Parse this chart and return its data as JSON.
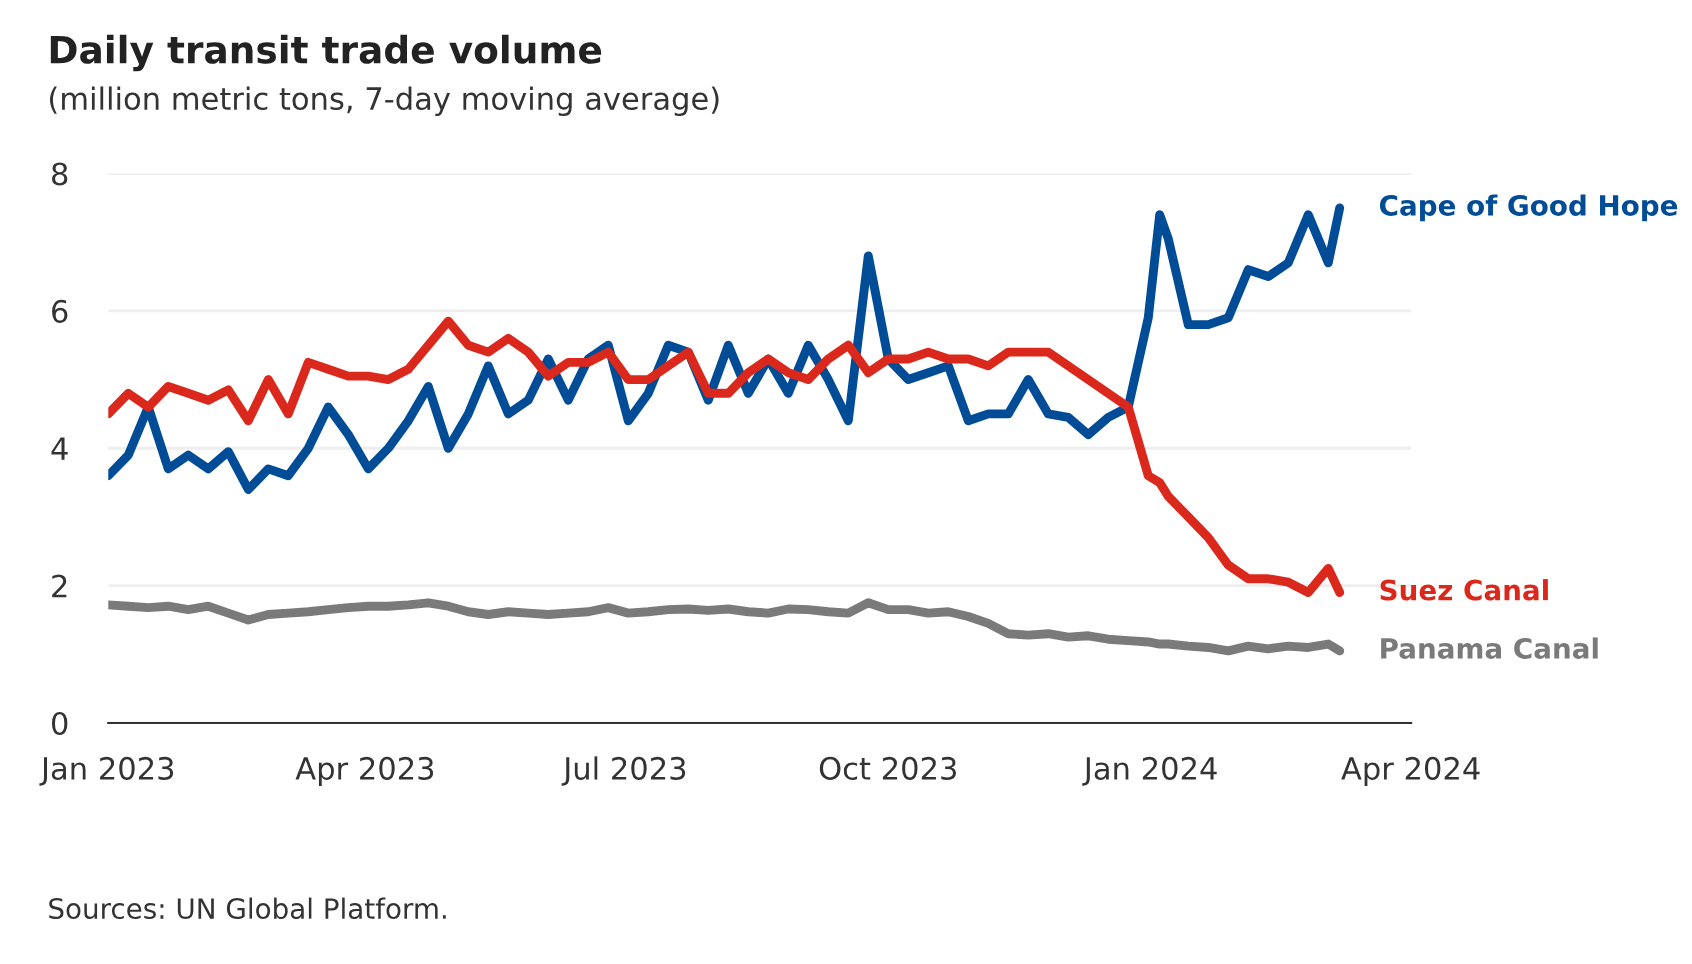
{
  "chart_data": {
    "type": "line",
    "title": "Daily transit trade volume",
    "subtitle": "(million metric tons, 7-day moving average)",
    "x": [
      "2023-01-01",
      "2023-01-08",
      "2023-01-15",
      "2023-01-22",
      "2023-01-29",
      "2023-02-05",
      "2023-02-12",
      "2023-02-19",
      "2023-02-26",
      "2023-03-05",
      "2023-03-12",
      "2023-03-19",
      "2023-03-26",
      "2023-04-02",
      "2023-04-09",
      "2023-04-16",
      "2023-04-23",
      "2023-04-30",
      "2023-05-07",
      "2023-05-14",
      "2023-05-21",
      "2023-05-28",
      "2023-06-04",
      "2023-06-11",
      "2023-06-18",
      "2023-06-25",
      "2023-07-02",
      "2023-07-09",
      "2023-07-16",
      "2023-07-23",
      "2023-07-30",
      "2023-08-06",
      "2023-08-13",
      "2023-08-20",
      "2023-08-27",
      "2023-09-03",
      "2023-09-10",
      "2023-09-17",
      "2023-09-24",
      "2023-10-01",
      "2023-10-08",
      "2023-10-15",
      "2023-10-22",
      "2023-10-29",
      "2023-11-05",
      "2023-11-12",
      "2023-11-19",
      "2023-11-26",
      "2023-12-03",
      "2023-12-10",
      "2023-12-17",
      "2023-12-24",
      "2023-12-31",
      "2024-01-04",
      "2024-01-07",
      "2024-01-14",
      "2024-01-21",
      "2024-01-28",
      "2024-02-04",
      "2024-02-11",
      "2024-02-18",
      "2024-02-25",
      "2024-03-03",
      "2024-03-07"
    ],
    "series": [
      {
        "name": "Cape of Good Hope",
        "color": "#004c97",
        "values": [
          3.6,
          3.9,
          4.6,
          3.7,
          3.9,
          3.7,
          3.95,
          3.4,
          3.7,
          3.6,
          4.0,
          4.6,
          4.2,
          3.7,
          4.0,
          4.4,
          4.9,
          4.0,
          4.5,
          5.2,
          4.5,
          4.7,
          5.3,
          4.7,
          5.3,
          5.5,
          4.4,
          4.8,
          5.5,
          5.4,
          4.7,
          5.5,
          4.8,
          5.3,
          4.8,
          5.5,
          5.0,
          4.4,
          6.8,
          5.3,
          5.0,
          5.1,
          5.2,
          4.4,
          4.5,
          4.5,
          5.0,
          4.5,
          4.45,
          4.2,
          4.45,
          4.6,
          5.9,
          7.4,
          7.05,
          5.8,
          5.8,
          5.9,
          6.6,
          6.5,
          6.7,
          7.4,
          6.7,
          7.5
        ]
      },
      {
        "name": "Suez Canal",
        "color": "#da291c",
        "values": [
          4.5,
          4.8,
          4.6,
          4.9,
          4.8,
          4.7,
          4.85,
          4.4,
          5.0,
          4.5,
          5.25,
          5.15,
          5.05,
          5.05,
          5.0,
          5.15,
          5.5,
          5.85,
          5.5,
          5.4,
          5.6,
          5.4,
          5.05,
          5.25,
          5.25,
          5.4,
          5.0,
          5.0,
          5.2,
          5.4,
          4.8,
          4.8,
          5.1,
          5.3,
          5.1,
          5.0,
          5.3,
          5.5,
          5.1,
          5.3,
          5.3,
          5.4,
          5.3,
          5.3,
          5.2,
          5.4,
          5.4,
          5.4,
          5.2,
          5.0,
          4.8,
          4.6,
          3.6,
          3.5,
          3.3,
          3.0,
          2.7,
          2.3,
          2.1,
          2.1,
          2.05,
          1.9,
          2.25,
          1.9
        ]
      },
      {
        "name": "Panama Canal",
        "color": "#7a7a7a",
        "values": [
          1.72,
          1.7,
          1.68,
          1.7,
          1.65,
          1.7,
          1.6,
          1.5,
          1.58,
          1.6,
          1.62,
          1.65,
          1.68,
          1.7,
          1.7,
          1.72,
          1.75,
          1.7,
          1.62,
          1.58,
          1.62,
          1.6,
          1.58,
          1.6,
          1.62,
          1.68,
          1.6,
          1.62,
          1.65,
          1.66,
          1.64,
          1.66,
          1.62,
          1.6,
          1.66,
          1.65,
          1.62,
          1.6,
          1.75,
          1.65,
          1.65,
          1.6,
          1.62,
          1.55,
          1.45,
          1.3,
          1.28,
          1.3,
          1.25,
          1.27,
          1.22,
          1.2,
          1.18,
          1.15,
          1.15,
          1.12,
          1.1,
          1.05,
          1.12,
          1.08,
          1.12,
          1.1,
          1.15,
          1.05
        ]
      }
    ],
    "xlim": [
      "2023-01-01",
      "2024-04-01"
    ],
    "xticks": [
      {
        "value": "2023-01-01",
        "label": "Jan 2023"
      },
      {
        "value": "2023-04-01",
        "label": "Apr 2023"
      },
      {
        "value": "2023-07-01",
        "label": "Jul 2023"
      },
      {
        "value": "2023-10-01",
        "label": "Oct 2023"
      },
      {
        "value": "2024-01-01",
        "label": "Jan 2024"
      },
      {
        "value": "2024-04-01",
        "label": "Apr 2024"
      }
    ],
    "ylim": [
      0,
      8
    ],
    "yticks": [
      0,
      2,
      4,
      6,
      8
    ],
    "grid": "y",
    "legend": "right",
    "line_style": "solid",
    "marker": "none",
    "annotations": [
      "Sources: UN Global Platform."
    ]
  }
}
